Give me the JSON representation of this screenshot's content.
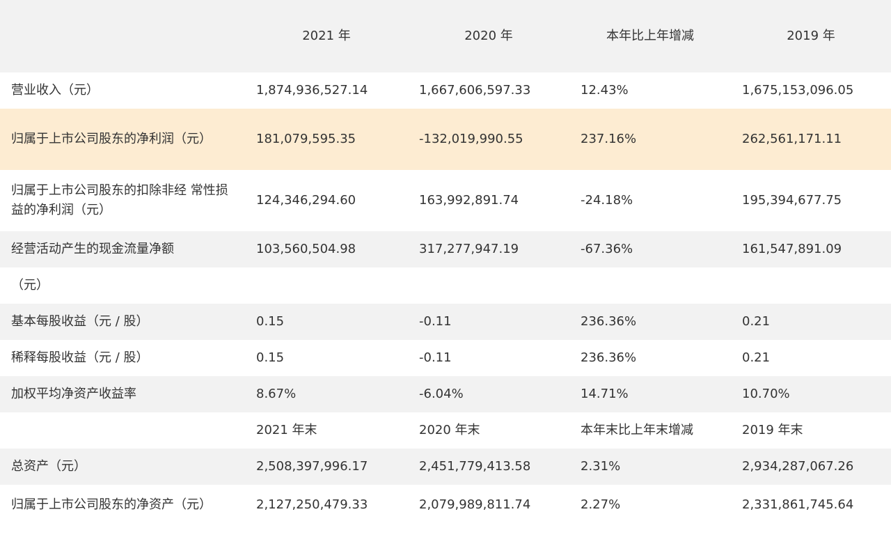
{
  "header": {
    "col1": "2021 年",
    "col2": "2020 年",
    "col3": "本年比上年增减",
    "col4": "2019 年"
  },
  "rows": [
    {
      "label": "营业收入（元）",
      "v2021": "1,874,936,527.14",
      "v2020": "1,667,606,597.33",
      "change": "12.43%",
      "v2019": "1,675,153,096.05"
    },
    {
      "label": "归属于上市公司股东的净利润（元）",
      "v2021": "181,079,595.35",
      "v2020": "-132,019,990.55",
      "change": "237.16%",
      "v2019": "262,561,171.11"
    },
    {
      "label": "归属于上市公司股东的扣除非经 常性损益的净利润（元）",
      "v2021": "124,346,294.60",
      "v2020": "163,992,891.74",
      "change": "-24.18%",
      "v2019": "195,394,677.75"
    },
    {
      "label": "经营活动产生的现金流量净额",
      "v2021": "103,560,504.98",
      "v2020": "317,277,947.19",
      "change": "-67.36%",
      "v2019": "161,547,891.09"
    },
    {
      "label": "（元）",
      "v2021": "",
      "v2020": "",
      "change": "",
      "v2019": ""
    },
    {
      "label": "基本每股收益（元 / 股）",
      "v2021": "0.15",
      "v2020": "-0.11",
      "change": "236.36%",
      "v2019": "0.21"
    },
    {
      "label": "稀释每股收益（元 / 股）",
      "v2021": "0.15",
      "v2020": "-0.11",
      "change": "236.36%",
      "v2019": "0.21"
    },
    {
      "label": "加权平均净资产收益率",
      "v2021": "8.67%",
      "v2020": "-6.04%",
      "change": "14.71%",
      "v2019": "10.70%"
    },
    {
      "label": "",
      "v2021": "2021 年末",
      "v2020": "2020 年末",
      "change": "本年末比上年末增减",
      "v2019": "2019 年末"
    },
    {
      "label": "总资产（元）",
      "v2021": "2,508,397,996.17",
      "v2020": "2,451,779,413.58",
      "change": "2.31%",
      "v2019": "2,934,287,067.26"
    },
    {
      "label": "归属于上市公司股东的净资产（元）",
      "v2021": "2,127,250,479.33",
      "v2020": "2,079,989,811.74",
      "change": "2.27%",
      "v2019": "2,331,861,745.64"
    }
  ],
  "colors": {
    "header_bg": "#f2f2f2",
    "stripe_bg": "#f2f2f2",
    "highlight_bg": "#fdecd2",
    "text": "#333333"
  },
  "icons": {
    "copy": "copy-icon"
  }
}
